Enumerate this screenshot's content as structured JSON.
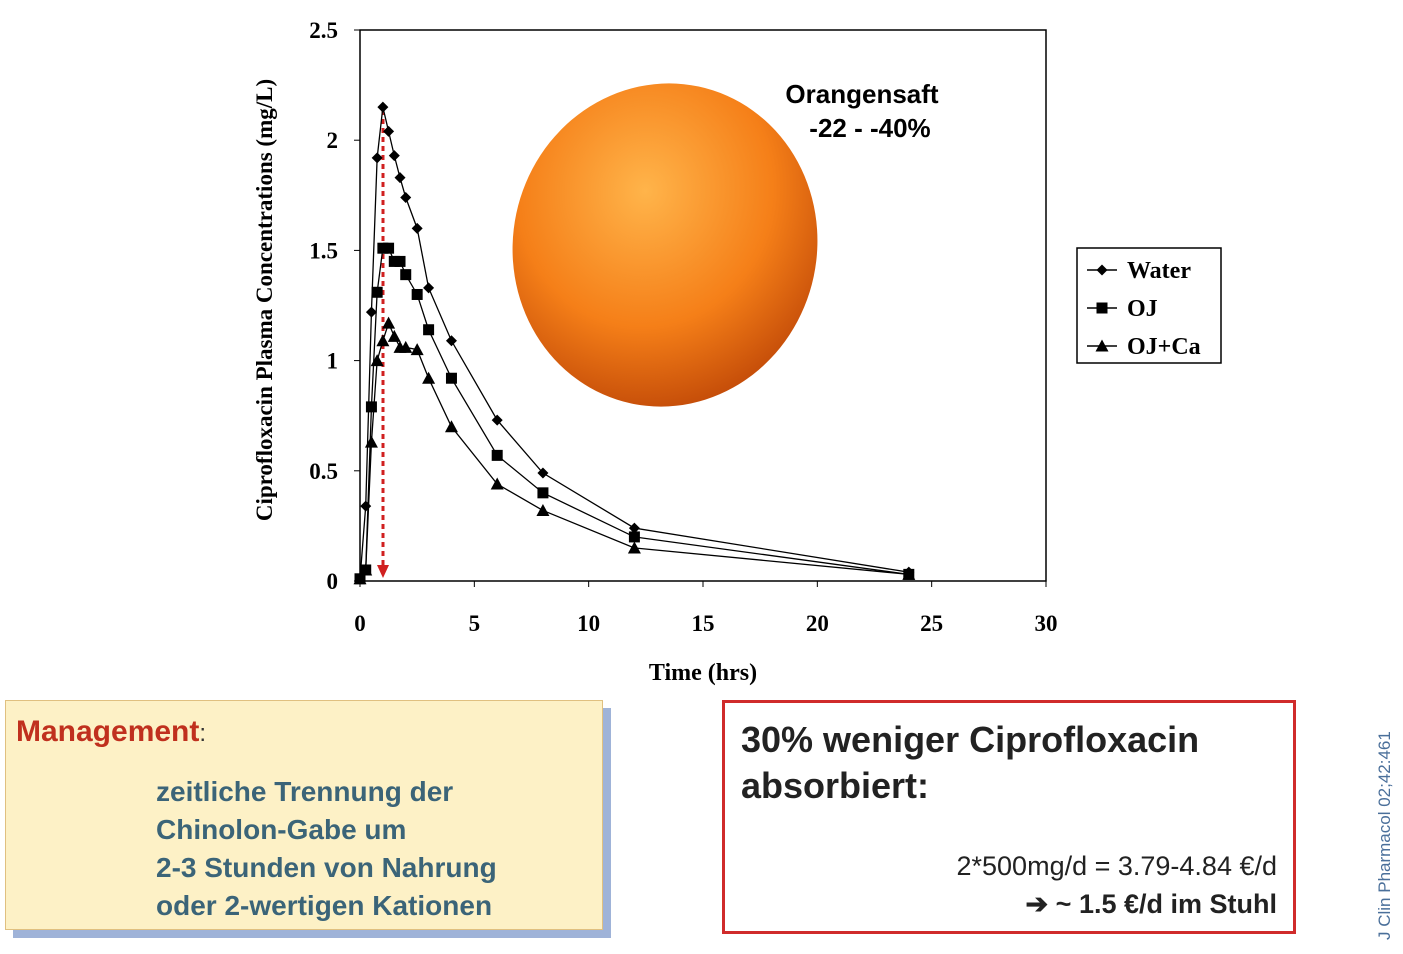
{
  "chart_data": {
    "type": "line",
    "x_label": "Time (hrs)",
    "y_label": "Ciprofloxacin Plasma Concentrations (mg/L)",
    "x": [
      0,
      0.25,
      0.5,
      0.75,
      1,
      1.25,
      1.5,
      1.75,
      2,
      2.5,
      3,
      4,
      6,
      8,
      12,
      24
    ],
    "series": [
      {
        "name": "Water",
        "color": "#000000",
        "marker": "diamond",
        "values": [
          0.01,
          0.34,
          1.22,
          1.92,
          2.15,
          2.04,
          1.93,
          1.83,
          1.74,
          1.6,
          1.33,
          1.09,
          0.73,
          0.49,
          0.24,
          0.04
        ]
      },
      {
        "name": "OJ",
        "color": "#000000",
        "marker": "square",
        "values": [
          0.01,
          0.05,
          0.79,
          1.31,
          1.51,
          1.51,
          1.45,
          1.45,
          1.39,
          1.3,
          1.14,
          0.92,
          0.57,
          0.4,
          0.2,
          0.03
        ]
      },
      {
        "name": "OJ+Ca",
        "color": "#000000",
        "marker": "triangle",
        "values": [
          0.01,
          0.05,
          0.63,
          1.0,
          1.09,
          1.17,
          1.11,
          1.06,
          1.06,
          1.05,
          0.92,
          0.7,
          0.44,
          0.32,
          0.15,
          0.03
        ]
      }
    ],
    "xlim": [
      0,
      30
    ],
    "xticks": [
      0,
      5,
      10,
      15,
      20,
      25,
      30
    ],
    "ylim": [
      0,
      2.5
    ],
    "yticks": [
      0,
      0.5,
      1,
      1.5,
      2,
      2.5
    ],
    "legend": "right",
    "annotations": [
      "Orangensaft",
      "-22 - -40%"
    ]
  },
  "management": {
    "title": "Management",
    "colon": ":",
    "lines": [
      "zeitliche Trennung der",
      "Chinolon-Gabe um",
      "2-3 Stunden von Nahrung",
      "oder 2-wertigen Kationen"
    ]
  },
  "summary": {
    "title_lines": [
      "30% weniger Ciprofloxacin",
      "absorbiert:"
    ],
    "cost": "2*500mg/d = 3.79-4.84 €/d",
    "arrow": "➔",
    "loss": "~ 1.5 €/d im Stuhl"
  },
  "citation": "J Clin Pharmacol 02;42:461"
}
